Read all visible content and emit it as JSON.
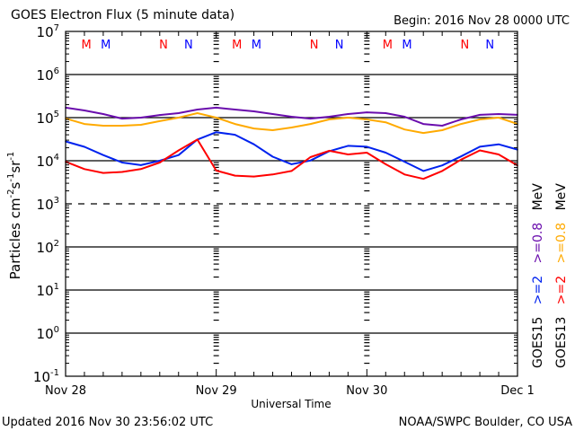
{
  "chart_data": {
    "type": "line",
    "title": "GOES Electron Flux (5 minute data)",
    "begin_label": "Begin: 2016 Nov 28 0000 UTC",
    "xlabel": "Universal Time",
    "ylabel": {
      "base": "Particles cm",
      "exp1": "-2",
      "mid": "s",
      "exp2": "-1",
      "mid2": "sr",
      "exp3": "-1"
    },
    "yscale": "log",
    "ylim_exp": [
      -1,
      7
    ],
    "y_ticks": [
      {
        "base": "10",
        "exp": "7"
      },
      {
        "base": "10",
        "exp": "6"
      },
      {
        "base": "10",
        "exp": "5"
      },
      {
        "base": "10",
        "exp": "4"
      },
      {
        "base": "10",
        "exp": "3"
      },
      {
        "base": "10",
        "exp": "2"
      },
      {
        "base": "10",
        "exp": "1"
      },
      {
        "base": "10",
        "exp": "0"
      },
      {
        "base": "10",
        "exp": "-1"
      }
    ],
    "solid_gridlines_exp": [
      6,
      5,
      4,
      2,
      1,
      0
    ],
    "dashed_gridlines_exp": [
      3
    ],
    "xlim_hours": [
      0,
      72
    ],
    "x_ticks": [
      {
        "label": "Nov 28",
        "hour": 0
      },
      {
        "label": "Nov 29",
        "hour": 24
      },
      {
        "label": "Nov 30",
        "hour": 48
      },
      {
        "label": "Dec 1",
        "hour": 72
      }
    ],
    "minor_tick_hours": 3,
    "x_hours": [
      0,
      3,
      6,
      9,
      12,
      15,
      18,
      21,
      24,
      27,
      30,
      33,
      36,
      39,
      42,
      45,
      48,
      51,
      54,
      57,
      60,
      63,
      66,
      69,
      72
    ],
    "series": [
      {
        "name": "GOES15 >=0.8 MeV",
        "color": "#6a0dad",
        "values": [
          170000,
          147000,
          121000,
          95000,
          100000,
          115000,
          127000,
          154000,
          170000,
          154000,
          140000,
          121000,
          105000,
          95000,
          105000,
          121000,
          133000,
          127000,
          105000,
          71000,
          65000,
          91000,
          116000,
          121000,
          116000
        ]
      },
      {
        "name": "GOES13 >=0.8 MeV",
        "color": "#ffaa00",
        "values": [
          96000,
          71000,
          65000,
          65000,
          68000,
          83000,
          100000,
          127000,
          100000,
          71000,
          56000,
          51000,
          59000,
          71000,
          91000,
          100000,
          91000,
          78000,
          53000,
          44000,
          51000,
          71000,
          91000,
          100000,
          71000
        ]
      },
      {
        "name": "GOES15 >=2 MeV",
        "color": "#0022ee",
        "values": [
          28000,
          21000,
          13500,
          9100,
          7900,
          10000,
          13500,
          31000,
          46000,
          40000,
          24000,
          12400,
          8300,
          10100,
          16600,
          22200,
          21100,
          15400,
          9500,
          5800,
          7800,
          12600,
          21100,
          24000,
          18100
        ]
      },
      {
        "name": "GOES13 >=2 MeV",
        "color": "#ff0000",
        "values": [
          9500,
          6400,
          5200,
          5500,
          6400,
          9100,
          17400,
          31000,
          5900,
          4500,
          4300,
          4800,
          5800,
          12100,
          17000,
          14000,
          15400,
          8300,
          4800,
          3800,
          5800,
          10600,
          17400,
          14000,
          7800
        ]
      }
    ],
    "legend": [
      {
        "group": "GOES15",
        "items": [
          {
            "label": ">=2",
            "color": "#0022ee"
          },
          {
            "label": ">=0.8",
            "color": "#6a0dad"
          },
          {
            "label": "MeV",
            "color": "#000000"
          }
        ]
      },
      {
        "group": "GOES13",
        "items": [
          {
            "label": ">=2",
            "color": "#ff0000"
          },
          {
            "label": ">=0.8",
            "color": "#ffaa00"
          },
          {
            "label": "MeV",
            "color": "#000000"
          }
        ]
      }
    ],
    "top_markers": [
      {
        "label": "M",
        "hour": 3.3,
        "color": "#ff0000"
      },
      {
        "label": "M",
        "hour": 6.4,
        "color": "#0000ff"
      },
      {
        "label": "N",
        "hour": 15.6,
        "color": "#ff0000"
      },
      {
        "label": "N",
        "hour": 19.6,
        "color": "#0000ff"
      },
      {
        "label": "M",
        "hour": 27.3,
        "color": "#ff0000"
      },
      {
        "label": "M",
        "hour": 30.4,
        "color": "#0000ff"
      },
      {
        "label": "N",
        "hour": 39.6,
        "color": "#ff0000"
      },
      {
        "label": "N",
        "hour": 43.6,
        "color": "#0000ff"
      },
      {
        "label": "M",
        "hour": 51.3,
        "color": "#ff0000"
      },
      {
        "label": "M",
        "hour": 54.4,
        "color": "#0000ff"
      },
      {
        "label": "N",
        "hour": 63.6,
        "color": "#ff0000"
      },
      {
        "label": "N",
        "hour": 67.6,
        "color": "#0000ff"
      }
    ]
  },
  "footer": {
    "updated": "Updated 2016 Nov 30 23:56:02 UTC",
    "source": "NOAA/SWPC Boulder, CO USA"
  }
}
